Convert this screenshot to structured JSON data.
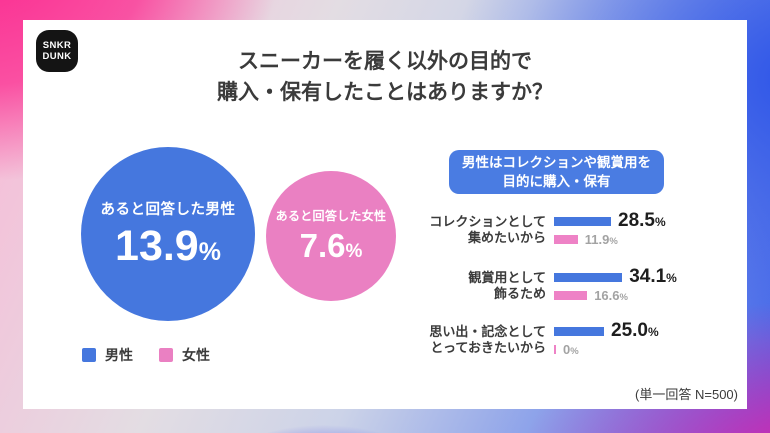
{
  "logo": {
    "line1": "SNKR",
    "line2": "DUNK"
  },
  "title": {
    "line1": "スニーカーを履く以外の目的で",
    "line2": "購入・保有したことはありますか？"
  },
  "colors": {
    "male_blue": "#4577de",
    "female_pink": "#ea80c2",
    "bar_pink": "#ee82c6",
    "callout_bg": "#4a7ce2",
    "logo_bg": "#141414",
    "card_bg": "#ffffff",
    "bg_pink": "#fb2b90",
    "bg_blue": "#2e55e8",
    "bg_magenta": "#ef1fa5"
  },
  "units": {
    "percent": "%"
  },
  "circles": [
    {
      "label": "あると回答した男性",
      "value": "13.9",
      "unit": "%"
    },
    {
      "label": "あると回答した女性",
      "value": "7.6",
      "unit": "%"
    }
  ],
  "legend": [
    {
      "label": "男性"
    },
    {
      "label": "女性"
    }
  ],
  "callout": {
    "line1": "男性はコレクションや観賞用を",
    "line2": "目的に購入・保有"
  },
  "bar_rows": [
    {
      "label1": "コレクションとして",
      "label2": "集めたいから",
      "male_value": "28.5",
      "female_value": "11.9"
    },
    {
      "label1": "観賞用として",
      "label2": "飾るため",
      "male_value": "34.1",
      "female_value": "16.6"
    },
    {
      "label1": "思い出・記念として",
      "label2": "とっておきたいから",
      "male_value": "25.0",
      "female_value": "0"
    }
  ],
  "footnote": "(単一回答 N=500)",
  "chart_data": {
    "type": "bar",
    "orientation": "horizontal",
    "title": "スニーカーを履く以外の目的で購入・保有したことはありますか？",
    "summary": [
      {
        "label": "あると回答した男性",
        "value": 13.9
      },
      {
        "label": "あると回答した女性",
        "value": 7.6
      }
    ],
    "categories": [
      "コレクションとして集めたいから",
      "観賞用として飾るため",
      "思い出・記念としてとっておきたいから"
    ],
    "series": [
      {
        "name": "男性",
        "values": [
          28.5,
          34.1,
          25.0
        ],
        "color": "#4577de"
      },
      {
        "name": "女性",
        "values": [
          11.9,
          16.6,
          0
        ],
        "color": "#ee82c6"
      }
    ],
    "unit": "%",
    "xlim": [
      0,
      40
    ],
    "legend_position": "bottom-left-of-circles",
    "note": "(単一回答 N=500)"
  }
}
